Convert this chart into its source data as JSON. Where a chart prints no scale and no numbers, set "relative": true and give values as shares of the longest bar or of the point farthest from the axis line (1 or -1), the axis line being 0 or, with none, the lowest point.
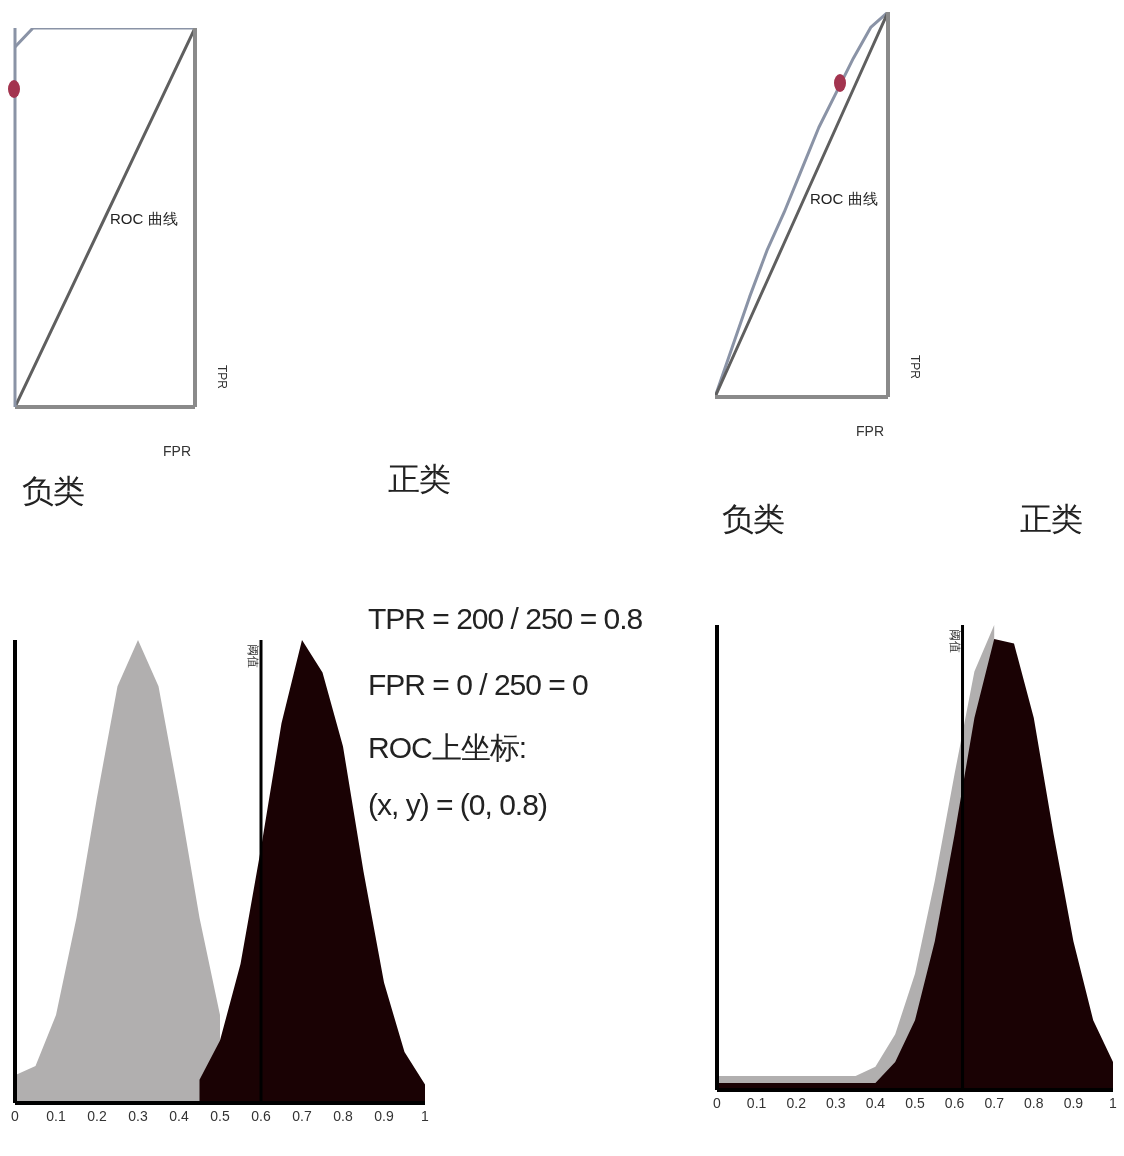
{
  "chart_data": [
    {
      "type": "line",
      "relative": true,
      "tick_labels": false,
      "categories": [
        null,
        null,
        null,
        null,
        null,
        null,
        null,
        null,
        null,
        null,
        null
      ],
      "xlabel": "FPR",
      "ylabel": "TPR",
      "annotations": [
        "ROC 曲线"
      ],
      "series": [
        {
          "color": "#8a93a6",
          "values": [
            0.95,
            1,
            1,
            1,
            1,
            1,
            1,
            1,
            1,
            1,
            1
          ]
        },
        {
          "color": "#5f5f5f",
          "values": [
            0,
            0.1,
            0.2,
            0.3,
            0.4,
            0.5,
            0.6,
            0.7,
            0.8,
            0.9,
            1
          ]
        }
      ]
    },
    {
      "type": "line",
      "relative": true,
      "tick_labels": false,
      "categories": [
        null,
        null,
        null,
        null,
        null,
        null,
        null,
        null,
        null,
        null,
        null
      ],
      "xlabel": "FPR",
      "ylabel": "TPR",
      "annotations": [
        "ROC 曲线"
      ],
      "series": [
        {
          "color": "#8a93a6",
          "values": [
            0,
            0.13,
            0.26,
            0.38,
            0.48,
            0.59,
            0.7,
            0.79,
            0.88,
            0.96,
            1
          ]
        },
        {
          "color": "#5f5f5f",
          "values": [
            0,
            0.1,
            0.2,
            0.3,
            0.4,
            0.5,
            0.6,
            0.7,
            0.8,
            0.9,
            1
          ]
        }
      ]
    },
    {
      "type": "area",
      "relative": true,
      "xlim": [
        0,
        1
      ],
      "xticks": [
        0,
        0.1,
        0.2,
        0.3,
        0.4,
        0.5,
        0.6,
        0.7,
        0.8,
        0.9,
        1
      ],
      "tick_labels": "x",
      "x": [
        0,
        0.05,
        0.1,
        0.15,
        0.2,
        0.25,
        0.3,
        0.35,
        0.4,
        0.45,
        0.5,
        0.55,
        0.6,
        0.65,
        0.7,
        0.75,
        0.8,
        0.85,
        0.9,
        0.95,
        1
      ],
      "annotations": [
        "负类",
        "正类",
        "TPR = 200 / 250 = 0.8",
        "FPR = 0 / 250 = 0",
        "ROC上坐标:",
        "(x, y) = (0, 0.8)"
      ],
      "ref_lines": [
        {
          "axis": "x",
          "value": 0.6,
          "label": "阈值",
          "color": "#000000"
        }
      ],
      "series": [
        {
          "color": "#b1afaf",
          "values": [
            0.06,
            0.08,
            0.19,
            0.4,
            0.66,
            0.9,
            1,
            0.9,
            0.66,
            0.4,
            0.19,
            null,
            null,
            null,
            null,
            null,
            null,
            null,
            null,
            null,
            null
          ]
        },
        {
          "color": "#1a0204",
          "values": [
            null,
            null,
            null,
            null,
            null,
            null,
            null,
            null,
            null,
            0.05,
            0.135,
            0.3,
            0.55,
            0.82,
            1,
            0.93,
            0.77,
            0.5,
            0.26,
            0.11,
            0.04
          ]
        }
      ]
    },
    {
      "type": "area",
      "relative": true,
      "xlim": [
        0,
        1
      ],
      "xticks": [
        0,
        0.1,
        0.2,
        0.3,
        0.4,
        0.5,
        0.6,
        0.7,
        0.8,
        0.9,
        1
      ],
      "tick_labels": "x",
      "x": [
        0,
        0.05,
        0.1,
        0.15,
        0.2,
        0.25,
        0.3,
        0.35,
        0.4,
        0.45,
        0.5,
        0.55,
        0.6,
        0.65,
        0.7,
        0.75,
        0.8,
        0.85,
        0.9,
        0.95,
        1
      ],
      "annotations": [
        "负类",
        "正类"
      ],
      "ref_lines": [
        {
          "axis": "x",
          "value": 0.62,
          "label": "阈值",
          "color": "#000000"
        }
      ],
      "series": [
        {
          "color": "#b1afaf",
          "values": [
            0.03,
            0.03,
            0.03,
            0.03,
            0.03,
            0.03,
            0.03,
            0.03,
            0.05,
            0.12,
            0.25,
            0.45,
            0.68,
            0.9,
            1,
            null,
            null,
            null,
            null,
            null,
            null
          ]
        },
        {
          "color": "#1a0204",
          "values": [
            0.015,
            0.015,
            0.015,
            0.015,
            0.015,
            0.015,
            0.015,
            0.015,
            0.015,
            0.06,
            0.15,
            0.32,
            0.55,
            0.8,
            0.97,
            0.96,
            0.8,
            0.55,
            0.32,
            0.15,
            0.06
          ]
        }
      ]
    }
  ]
}
